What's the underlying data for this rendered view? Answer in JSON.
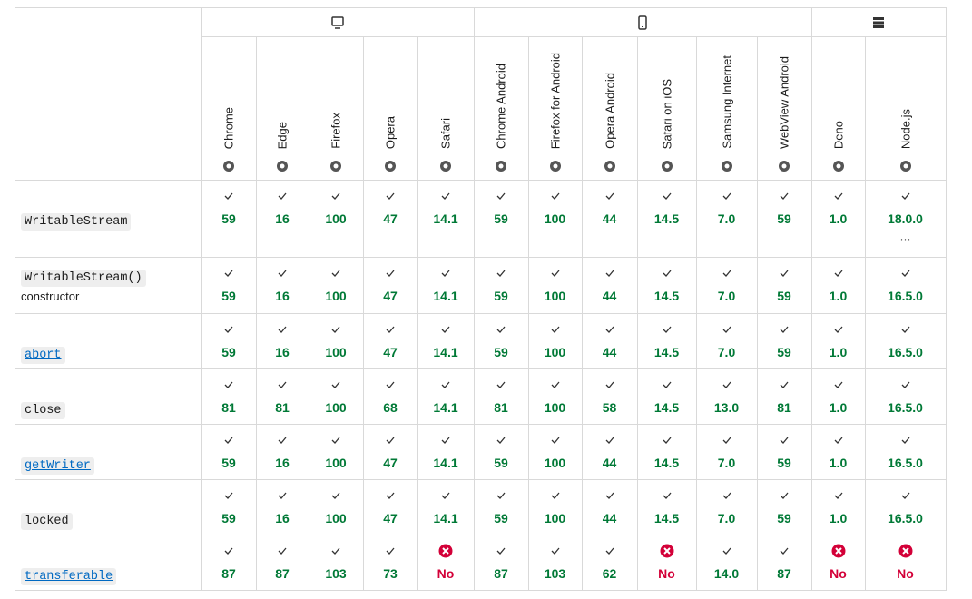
{
  "groups": [
    {
      "icon": "desktop",
      "span": 5
    },
    {
      "icon": "mobile",
      "span": 6
    },
    {
      "icon": "server",
      "span": 2
    }
  ],
  "browsers": [
    "Chrome",
    "Edge",
    "Firefox",
    "Opera",
    "Safari",
    "Chrome Android",
    "Firefox for Android",
    "Opera Android",
    "Safari on iOS",
    "Samsung Internet",
    "WebView Android",
    "Deno",
    "Node.js"
  ],
  "rows": [
    {
      "name": "WritableStream",
      "link": false,
      "cells": [
        {
          "text": "59",
          "supported": true
        },
        {
          "text": "16",
          "supported": true
        },
        {
          "text": "100",
          "supported": true
        },
        {
          "text": "47",
          "supported": true
        },
        {
          "text": "14.1",
          "supported": true
        },
        {
          "text": "59",
          "supported": true
        },
        {
          "text": "100",
          "supported": true
        },
        {
          "text": "44",
          "supported": true
        },
        {
          "text": "14.5",
          "supported": true
        },
        {
          "text": "7.0",
          "supported": true
        },
        {
          "text": "59",
          "supported": true
        },
        {
          "text": "1.0",
          "supported": true
        },
        {
          "text": "18.0.0",
          "supported": true,
          "more": "···"
        }
      ]
    },
    {
      "name": "WritableStream()",
      "desc": "constructor",
      "link": false,
      "cells": [
        {
          "text": "59",
          "supported": true
        },
        {
          "text": "16",
          "supported": true
        },
        {
          "text": "100",
          "supported": true
        },
        {
          "text": "47",
          "supported": true
        },
        {
          "text": "14.1",
          "supported": true
        },
        {
          "text": "59",
          "supported": true
        },
        {
          "text": "100",
          "supported": true
        },
        {
          "text": "44",
          "supported": true
        },
        {
          "text": "14.5",
          "supported": true
        },
        {
          "text": "7.0",
          "supported": true
        },
        {
          "text": "59",
          "supported": true
        },
        {
          "text": "1.0",
          "supported": true
        },
        {
          "text": "16.5.0",
          "supported": true
        }
      ]
    },
    {
      "name": "abort",
      "link": true,
      "cells": [
        {
          "text": "59",
          "supported": true
        },
        {
          "text": "16",
          "supported": true
        },
        {
          "text": "100",
          "supported": true
        },
        {
          "text": "47",
          "supported": true
        },
        {
          "text": "14.1",
          "supported": true
        },
        {
          "text": "59",
          "supported": true
        },
        {
          "text": "100",
          "supported": true
        },
        {
          "text": "44",
          "supported": true
        },
        {
          "text": "14.5",
          "supported": true
        },
        {
          "text": "7.0",
          "supported": true
        },
        {
          "text": "59",
          "supported": true
        },
        {
          "text": "1.0",
          "supported": true
        },
        {
          "text": "16.5.0",
          "supported": true
        }
      ]
    },
    {
      "name": "close",
      "link": false,
      "cells": [
        {
          "text": "81",
          "supported": true
        },
        {
          "text": "81",
          "supported": true
        },
        {
          "text": "100",
          "supported": true
        },
        {
          "text": "68",
          "supported": true
        },
        {
          "text": "14.1",
          "supported": true
        },
        {
          "text": "81",
          "supported": true
        },
        {
          "text": "100",
          "supported": true
        },
        {
          "text": "58",
          "supported": true
        },
        {
          "text": "14.5",
          "supported": true
        },
        {
          "text": "13.0",
          "supported": true
        },
        {
          "text": "81",
          "supported": true
        },
        {
          "text": "1.0",
          "supported": true
        },
        {
          "text": "16.5.0",
          "supported": true
        }
      ]
    },
    {
      "name": "getWriter",
      "link": true,
      "cells": [
        {
          "text": "59",
          "supported": true
        },
        {
          "text": "16",
          "supported": true
        },
        {
          "text": "100",
          "supported": true
        },
        {
          "text": "47",
          "supported": true
        },
        {
          "text": "14.1",
          "supported": true
        },
        {
          "text": "59",
          "supported": true
        },
        {
          "text": "100",
          "supported": true
        },
        {
          "text": "44",
          "supported": true
        },
        {
          "text": "14.5",
          "supported": true
        },
        {
          "text": "7.0",
          "supported": true
        },
        {
          "text": "59",
          "supported": true
        },
        {
          "text": "1.0",
          "supported": true
        },
        {
          "text": "16.5.0",
          "supported": true
        }
      ]
    },
    {
      "name": "locked",
      "link": false,
      "cells": [
        {
          "text": "59",
          "supported": true
        },
        {
          "text": "16",
          "supported": true
        },
        {
          "text": "100",
          "supported": true
        },
        {
          "text": "47",
          "supported": true
        },
        {
          "text": "14.1",
          "supported": true
        },
        {
          "text": "59",
          "supported": true
        },
        {
          "text": "100",
          "supported": true
        },
        {
          "text": "44",
          "supported": true
        },
        {
          "text": "14.5",
          "supported": true
        },
        {
          "text": "7.0",
          "supported": true
        },
        {
          "text": "59",
          "supported": true
        },
        {
          "text": "1.0",
          "supported": true
        },
        {
          "text": "16.5.0",
          "supported": true
        }
      ]
    },
    {
      "name": "transferable",
      "link": true,
      "cells": [
        {
          "text": "87",
          "supported": true
        },
        {
          "text": "87",
          "supported": true
        },
        {
          "text": "103",
          "supported": true
        },
        {
          "text": "73",
          "supported": true
        },
        {
          "text": "No",
          "supported": false
        },
        {
          "text": "87",
          "supported": true
        },
        {
          "text": "103",
          "supported": true
        },
        {
          "text": "62",
          "supported": true
        },
        {
          "text": "No",
          "supported": false
        },
        {
          "text": "14.0",
          "supported": true
        },
        {
          "text": "87",
          "supported": true
        },
        {
          "text": "No",
          "supported": false
        },
        {
          "text": "No",
          "supported": false
        }
      ]
    }
  ]
}
